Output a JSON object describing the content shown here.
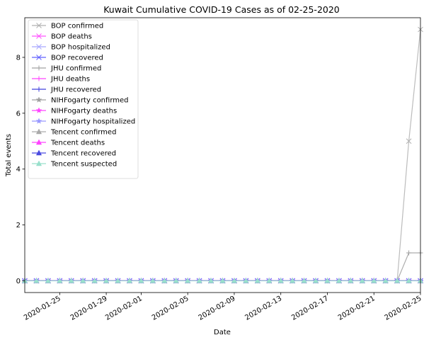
{
  "chart_data": {
    "type": "line",
    "title": "Kuwait Cumulative COVID-19 Cases as of 02-25-2020",
    "xlabel": "Date",
    "ylabel": "Total events",
    "x_start": "2020-01-22",
    "x_end": "2020-02-25",
    "xlim": [
      "2020-01-22",
      "2020-02-25"
    ],
    "ylim": [
      -0.42,
      9.42
    ],
    "x_ticks": [
      "2020-01-25",
      "2020-01-29",
      "2020-02-01",
      "2020-02-05",
      "2020-02-09",
      "2020-02-13",
      "2020-02-17",
      "2020-02-21",
      "2020-02-25"
    ],
    "y_ticks": [
      0,
      2,
      4,
      6,
      8
    ],
    "grid": false,
    "legend_position": "top-left",
    "series": [
      {
        "name": "BOP confirmed",
        "color": "#b0b0b0",
        "marker": "x",
        "points": [
          [
            "2020-01-22",
            0
          ],
          [
            "2020-02-23",
            0
          ],
          [
            "2020-02-24",
            5
          ],
          [
            "2020-02-25",
            9
          ]
        ]
      },
      {
        "name": "BOP deaths",
        "color": "#ff55ff",
        "marker": "x",
        "points": [
          [
            "2020-01-22",
            0
          ],
          [
            "2020-02-25",
            0
          ]
        ]
      },
      {
        "name": "BOP hospitalized",
        "color": "#a8a8ff",
        "marker": "x",
        "points": [
          [
            "2020-01-22",
            0
          ],
          [
            "2020-02-25",
            0
          ]
        ]
      },
      {
        "name": "BOP recovered",
        "color": "#6060ff",
        "marker": "x",
        "points": [
          [
            "2020-01-22",
            0
          ],
          [
            "2020-02-25",
            0
          ]
        ]
      },
      {
        "name": "JHU confirmed",
        "color": "#a0a0a0",
        "marker": "+",
        "points": [
          [
            "2020-01-22",
            0
          ],
          [
            "2020-02-23",
            0
          ],
          [
            "2020-02-24",
            1
          ],
          [
            "2020-02-25",
            1
          ]
        ]
      },
      {
        "name": "JHU deaths",
        "color": "#ff44ff",
        "marker": "+",
        "points": [
          [
            "2020-01-22",
            0
          ],
          [
            "2020-02-25",
            0
          ]
        ]
      },
      {
        "name": "JHU recovered",
        "color": "#4040dd",
        "marker": "+",
        "points": [
          [
            "2020-01-22",
            0
          ],
          [
            "2020-02-25",
            0
          ]
        ]
      },
      {
        "name": "NIHFogarty confirmed",
        "color": "#a0a0a0",
        "marker": "*",
        "points": [
          [
            "2020-01-22",
            0
          ],
          [
            "2020-02-25",
            0
          ]
        ]
      },
      {
        "name": "NIHFogarty deaths",
        "color": "#ff44ff",
        "marker": "*",
        "points": [
          [
            "2020-01-22",
            0
          ],
          [
            "2020-02-25",
            0
          ]
        ]
      },
      {
        "name": "NIHFogarty hospitalized",
        "color": "#9999ff",
        "marker": "*",
        "points": [
          [
            "2020-01-22",
            0
          ],
          [
            "2020-02-25",
            0
          ]
        ]
      },
      {
        "name": "Tencent confirmed",
        "color": "#aaaaaa",
        "marker": "^",
        "points": [
          [
            "2020-01-22",
            0
          ],
          [
            "2020-02-25",
            0
          ]
        ]
      },
      {
        "name": "Tencent deaths",
        "color": "#ff44ff",
        "marker": "^",
        "points": [
          [
            "2020-01-22",
            0
          ],
          [
            "2020-02-25",
            0
          ]
        ]
      },
      {
        "name": "Tencent recovered",
        "color": "#4a4ae0",
        "marker": "^",
        "points": [
          [
            "2020-01-22",
            0
          ],
          [
            "2020-02-25",
            0
          ]
        ]
      },
      {
        "name": "Tencent suspected",
        "color": "#99e0cc",
        "marker": "^",
        "points": [
          [
            "2020-01-22",
            0
          ],
          [
            "2020-02-25",
            0
          ]
        ]
      }
    ]
  }
}
